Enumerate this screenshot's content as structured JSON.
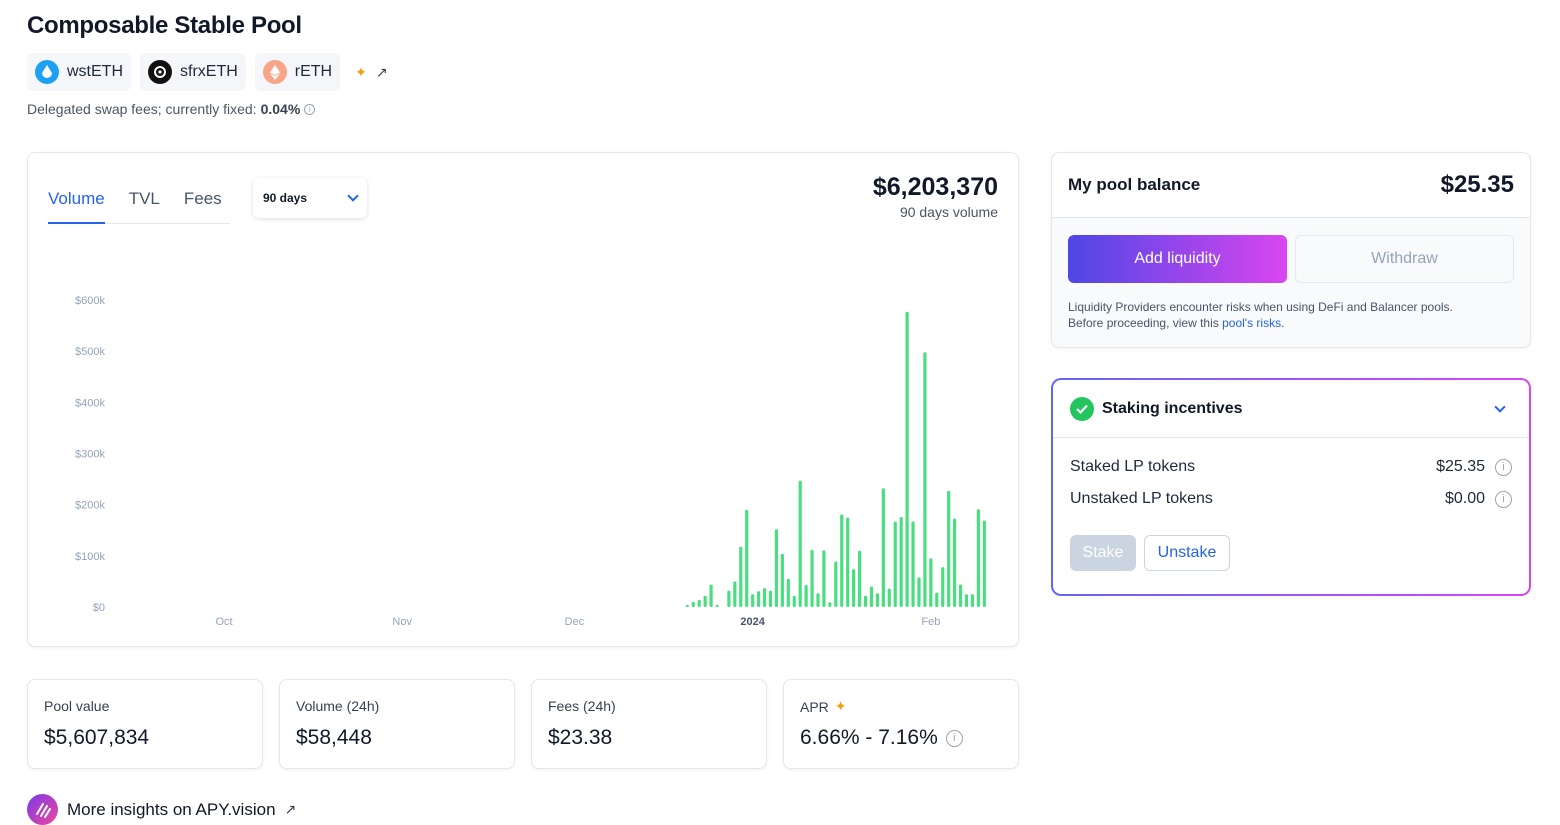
{
  "header": {
    "title": "Composable Stable Pool",
    "tokens": [
      {
        "symbol": "wstETH",
        "icon": "wsteth-icon",
        "color": "#1ea1f5"
      },
      {
        "symbol": "sfrxETH",
        "icon": "sfrxeth-icon",
        "color": "#111111"
      },
      {
        "symbol": "rETH",
        "icon": "reth-icon",
        "color": "#f8a488"
      }
    ],
    "fee_text": "Delegated swap fees; currently fixed:",
    "fee_value": "0.04%"
  },
  "chart_panel": {
    "tabs": [
      "Volume",
      "TVL",
      "Fees"
    ],
    "active_tab": "Volume",
    "period": "90 days",
    "total_value": "$6,203,370",
    "total_label": "90 days volume"
  },
  "chart_data": {
    "type": "bar",
    "title": "",
    "xlabel": "",
    "ylabel": "",
    "ylim": [
      0,
      600000
    ],
    "y_ticks": [
      "$0",
      "$100k",
      "$200k",
      "$300k",
      "$400k",
      "$500k",
      "$600k"
    ],
    "y_tick_values": [
      0,
      100000,
      200000,
      300000,
      400000,
      500000,
      600000
    ],
    "x_ticks": [
      "Oct",
      "Nov",
      "Dec",
      "2024",
      "Feb"
    ],
    "x_tick_days": [
      0,
      30,
      59,
      89,
      119
    ],
    "x_start_date": "2023-09-22",
    "series": [
      {
        "name": "Volume",
        "color": "#4ade80",
        "days": [
          78,
          79,
          80,
          81,
          82,
          83,
          85,
          86,
          87,
          88,
          89,
          90,
          91,
          92,
          93,
          94,
          95,
          96,
          97,
          98,
          99,
          100,
          101,
          102,
          103,
          104,
          105,
          106,
          107,
          108,
          109,
          110,
          111,
          112,
          113,
          114,
          115,
          116,
          117,
          118,
          119,
          120,
          121,
          122,
          123,
          124,
          125,
          126,
          127,
          128
        ],
        "values": [
          4000,
          10000,
          14000,
          22000,
          44000,
          2000,
          32000,
          50000,
          118000,
          190000,
          25000,
          31000,
          37000,
          32000,
          152000,
          104000,
          55000,
          22000,
          247000,
          43000,
          112000,
          27000,
          111000,
          9000,
          89000,
          181000,
          175000,
          74000,
          110000,
          22000,
          40000,
          27000,
          232000,
          36000,
          167000,
          176000,
          577000,
          167000,
          58000,
          498000,
          95000,
          28000,
          78000,
          227000,
          173000,
          44000,
          25000,
          25000,
          191000,
          169000
        ]
      }
    ]
  },
  "pool_balance": {
    "title": "My pool balance",
    "value": "$25.35",
    "add_label": "Add liquidity",
    "withdraw_label": "Withdraw",
    "risk_text_1": "Liquidity Providers encounter risks when using DeFi and Balancer pools.",
    "risk_text_2": "Before proceeding, view this",
    "risk_link": "pool's risks",
    "risk_text_3": "."
  },
  "staking": {
    "title": "Staking incentives",
    "staked_label": "Staked LP tokens",
    "staked_value": "$25.35",
    "unstaked_label": "Unstaked LP tokens",
    "unstaked_value": "$0.00",
    "stake_label": "Stake",
    "unstake_label": "Unstake"
  },
  "stats": [
    {
      "label": "Pool value",
      "value": "$5,607,834"
    },
    {
      "label": "Volume (24h)",
      "value": "$58,448"
    },
    {
      "label": "Fees (24h)",
      "value": "$23.38"
    },
    {
      "label": "APR",
      "value": "6.66% - 7.16%"
    }
  ],
  "insights": {
    "label": "More insights on APY.vision"
  }
}
